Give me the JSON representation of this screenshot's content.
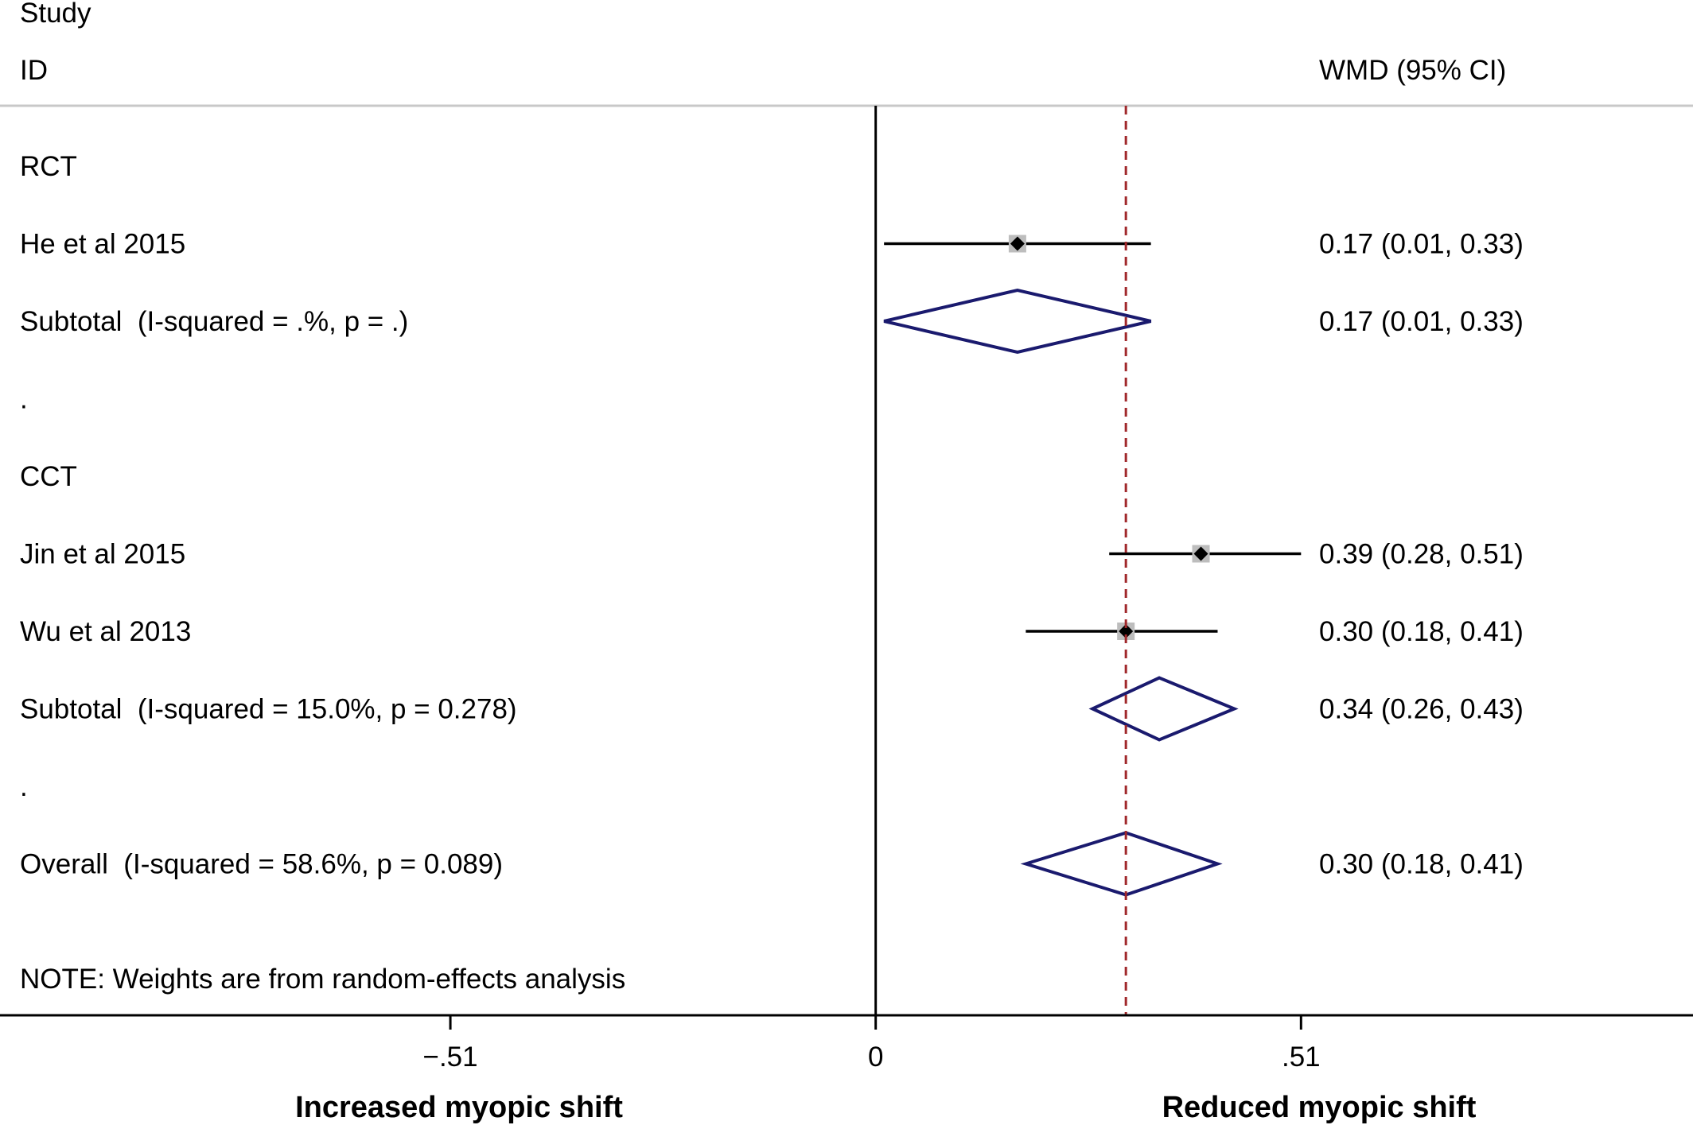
{
  "chart_data": {
    "type": "forest",
    "headers": {
      "study_line1": "Study",
      "study_line2": "ID",
      "effect": "WMD (95% CI)"
    },
    "rows": [
      {
        "kind": "group",
        "label": "RCT"
      },
      {
        "kind": "study",
        "label": "He et al 2015",
        "est": 0.17,
        "lo": 0.01,
        "hi": 0.33,
        "ci_text": "0.17 (0.01, 0.33)"
      },
      {
        "kind": "subtotal",
        "label": "Subtotal  (I-squared = .%, p = .)",
        "est": 0.17,
        "lo": 0.01,
        "hi": 0.33,
        "ci_text": "0.17 (0.01, 0.33)"
      },
      {
        "kind": "spacer",
        "label": "."
      },
      {
        "kind": "group",
        "label": "CCT"
      },
      {
        "kind": "study",
        "label": "Jin et al 2015",
        "est": 0.39,
        "lo": 0.28,
        "hi": 0.51,
        "ci_text": "0.39 (0.28, 0.51)"
      },
      {
        "kind": "study",
        "label": "Wu et al 2013",
        "est": 0.3,
        "lo": 0.18,
        "hi": 0.41,
        "ci_text": "0.30 (0.18, 0.41)"
      },
      {
        "kind": "subtotal",
        "label": "Subtotal  (I-squared = 15.0%, p = 0.278)",
        "est": 0.34,
        "lo": 0.26,
        "hi": 0.43,
        "ci_text": "0.34 (0.26, 0.43)"
      },
      {
        "kind": "spacer",
        "label": "."
      },
      {
        "kind": "subtotal",
        "label": "Overall  (I-squared = 58.6%, p = 0.089)",
        "est": 0.3,
        "lo": 0.18,
        "hi": 0.41,
        "ci_text": "0.30 (0.18, 0.41)"
      }
    ],
    "note": "NOTE: Weights are from random-effects analysis",
    "overall_line": 0.3,
    "null_line": 0,
    "xlim": [
      -1.05,
      0.98
    ],
    "xticks": [
      {
        "value": -0.51,
        "label": "−.51"
      },
      {
        "value": 0,
        "label": "0"
      },
      {
        "value": 0.51,
        "label": ".51"
      }
    ],
    "xlabel_left": "Increased myopic shift",
    "xlabel_right": "Reduced myopic shift",
    "colors": {
      "diamond": "#1a1a6e",
      "overall_line": "#a0282b",
      "weight_box": "#bdbdbd",
      "ci_line": "#000000"
    }
  }
}
